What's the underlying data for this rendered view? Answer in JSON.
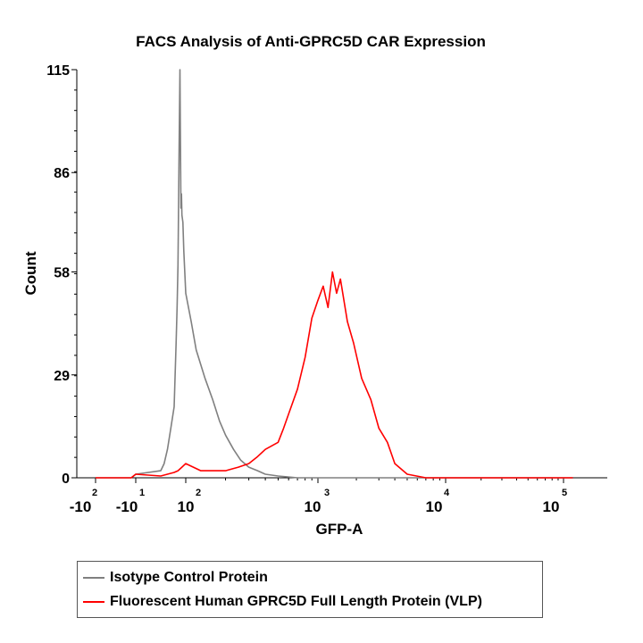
{
  "chart_data": {
    "type": "line",
    "title": "FACS Analysis of Anti-GPRC5D CAR Expression",
    "xlabel": "GFP-A",
    "ylabel": "Count",
    "ylim": [
      0,
      115
    ],
    "y_ticks": [
      "0",
      "29",
      "58",
      "86",
      "115"
    ],
    "x_scale": "biexponential (log)",
    "x_ticks": [
      {
        "base": "-10",
        "exp": "2"
      },
      {
        "base": "-10",
        "exp": "1"
      },
      {
        "base": "10",
        "exp": "2"
      },
      {
        "base": "10",
        "exp": "3"
      },
      {
        "base": "10",
        "exp": "4"
      },
      {
        "base": "10",
        "exp": "5"
      }
    ],
    "grid": false,
    "legend_position": "bottom",
    "series": [
      {
        "name": "Isotype Control Protein",
        "color": "#808080",
        "x": [
          -100,
          -20,
          -10,
          0,
          10,
          20,
          30,
          40,
          50,
          55,
          60,
          63,
          66,
          70,
          72,
          75,
          78,
          80,
          85,
          90,
          95,
          100,
          110,
          120,
          140,
          160,
          180,
          200,
          230,
          260,
          300,
          350,
          400,
          500,
          700,
          1000,
          10000,
          120000
        ],
        "values": [
          0,
          0,
          1,
          2,
          4,
          8,
          14,
          20,
          38,
          48,
          60,
          78,
          94,
          115,
          100,
          76,
          80,
          74,
          72,
          64,
          58,
          52,
          44,
          36,
          28,
          22,
          16,
          12,
          8,
          5,
          3,
          2,
          1,
          0.5,
          0,
          0,
          0,
          0
        ]
      },
      {
        "name": "Fluorescent Human GPRC5D Full Length Protein (VLP)",
        "color": "#ff0000",
        "x": [
          -100,
          -20,
          -10,
          0,
          20,
          40,
          60,
          80,
          100,
          130,
          160,
          200,
          250,
          300,
          350,
          400,
          500,
          550,
          600,
          700,
          800,
          900,
          1000,
          1100,
          1200,
          1300,
          1400,
          1500,
          1700,
          1900,
          2200,
          2600,
          3000,
          3500,
          4000,
          5000,
          7000,
          10000,
          120000
        ],
        "values": [
          0,
          0,
          1,
          0.5,
          1,
          1.5,
          2,
          3,
          4,
          2,
          2,
          2,
          3,
          4,
          6,
          8,
          10,
          14,
          18,
          25,
          34,
          45,
          50,
          54,
          48,
          58,
          52,
          56,
          44,
          38,
          28,
          22,
          14,
          10,
          4,
          1,
          0,
          0,
          0
        ]
      }
    ]
  }
}
